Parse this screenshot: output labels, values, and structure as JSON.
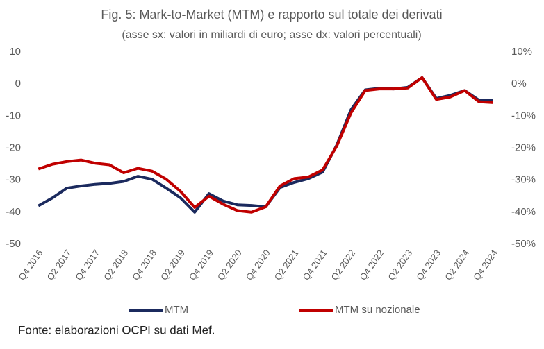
{
  "chart_data": {
    "type": "line",
    "title": "Fig. 5: Mark-to-Market (MTM) e rapporto sul totale dei derivati",
    "subtitle": "(asse sx: valori in miliardi di euro; asse dx: valori percentuali)",
    "source": "Fonte: elaborazioni OCPI su dati Mef.",
    "categories": [
      "Q4 2016",
      null,
      "Q2 2017",
      null,
      "Q4 2017",
      null,
      "Q2 2018",
      null,
      "Q4 2018",
      null,
      "Q2 2019",
      null,
      "Q4 2019",
      null,
      "Q2 2020",
      null,
      "Q4 2020",
      null,
      "Q2 2021",
      null,
      "Q4 2021",
      null,
      "Q2 2022",
      null,
      "Q4 2022",
      null,
      "Q2 2023",
      null,
      "Q4 2023",
      null,
      "Q2 2024",
      null,
      "Q4 2024"
    ],
    "series": [
      {
        "name": "MTM",
        "color": "#1b2a5e",
        "values": [
          -38,
          -35.5,
          -32.5,
          -31.8,
          -31.3,
          -31,
          -30.4,
          -28.8,
          -29.7,
          -32.5,
          -35.5,
          -40,
          -34.2,
          -36.5,
          -37.7,
          -37.9,
          -38.3,
          -32.3,
          -30.7,
          -29.5,
          -27.5,
          -19,
          -8,
          -1.8,
          -1.3,
          -1.5,
          -1,
          2,
          -4.5,
          -3.5,
          -2,
          -5,
          -5
        ]
      },
      {
        "name": "MTM su nozionale",
        "color": "#c00000",
        "axis": "y2",
        "values": [
          -26.5,
          -25,
          -24.2,
          -23.7,
          -24.7,
          -25.2,
          -27.7,
          -26.3,
          -27.2,
          -29.7,
          -33.5,
          -38.5,
          -35,
          -37.5,
          -39.5,
          -40,
          -38.3,
          -31.8,
          -29.5,
          -29,
          -26.8,
          -19.3,
          -9,
          -2,
          -1.5,
          -1.5,
          -1.2,
          2,
          -4.8,
          -4,
          -2,
          -5.5,
          -5.8
        ]
      }
    ],
    "ylim": [
      -50,
      10
    ],
    "yticks": [
      -50,
      -40,
      -30,
      -20,
      -10,
      0,
      10
    ],
    "y2lim": [
      -50,
      10
    ],
    "y2ticks": [
      {
        "value": -50,
        "label": "-50%"
      },
      {
        "value": -40,
        "label": "-40%"
      },
      {
        "value": -30,
        "label": "-30%"
      },
      {
        "value": -20,
        "label": "-20%"
      },
      {
        "value": -10,
        "label": "-10%"
      },
      {
        "value": 0,
        "label": "0%"
      },
      {
        "value": 10,
        "label": "10%"
      }
    ],
    "grid": false,
    "legend": "bottom"
  }
}
